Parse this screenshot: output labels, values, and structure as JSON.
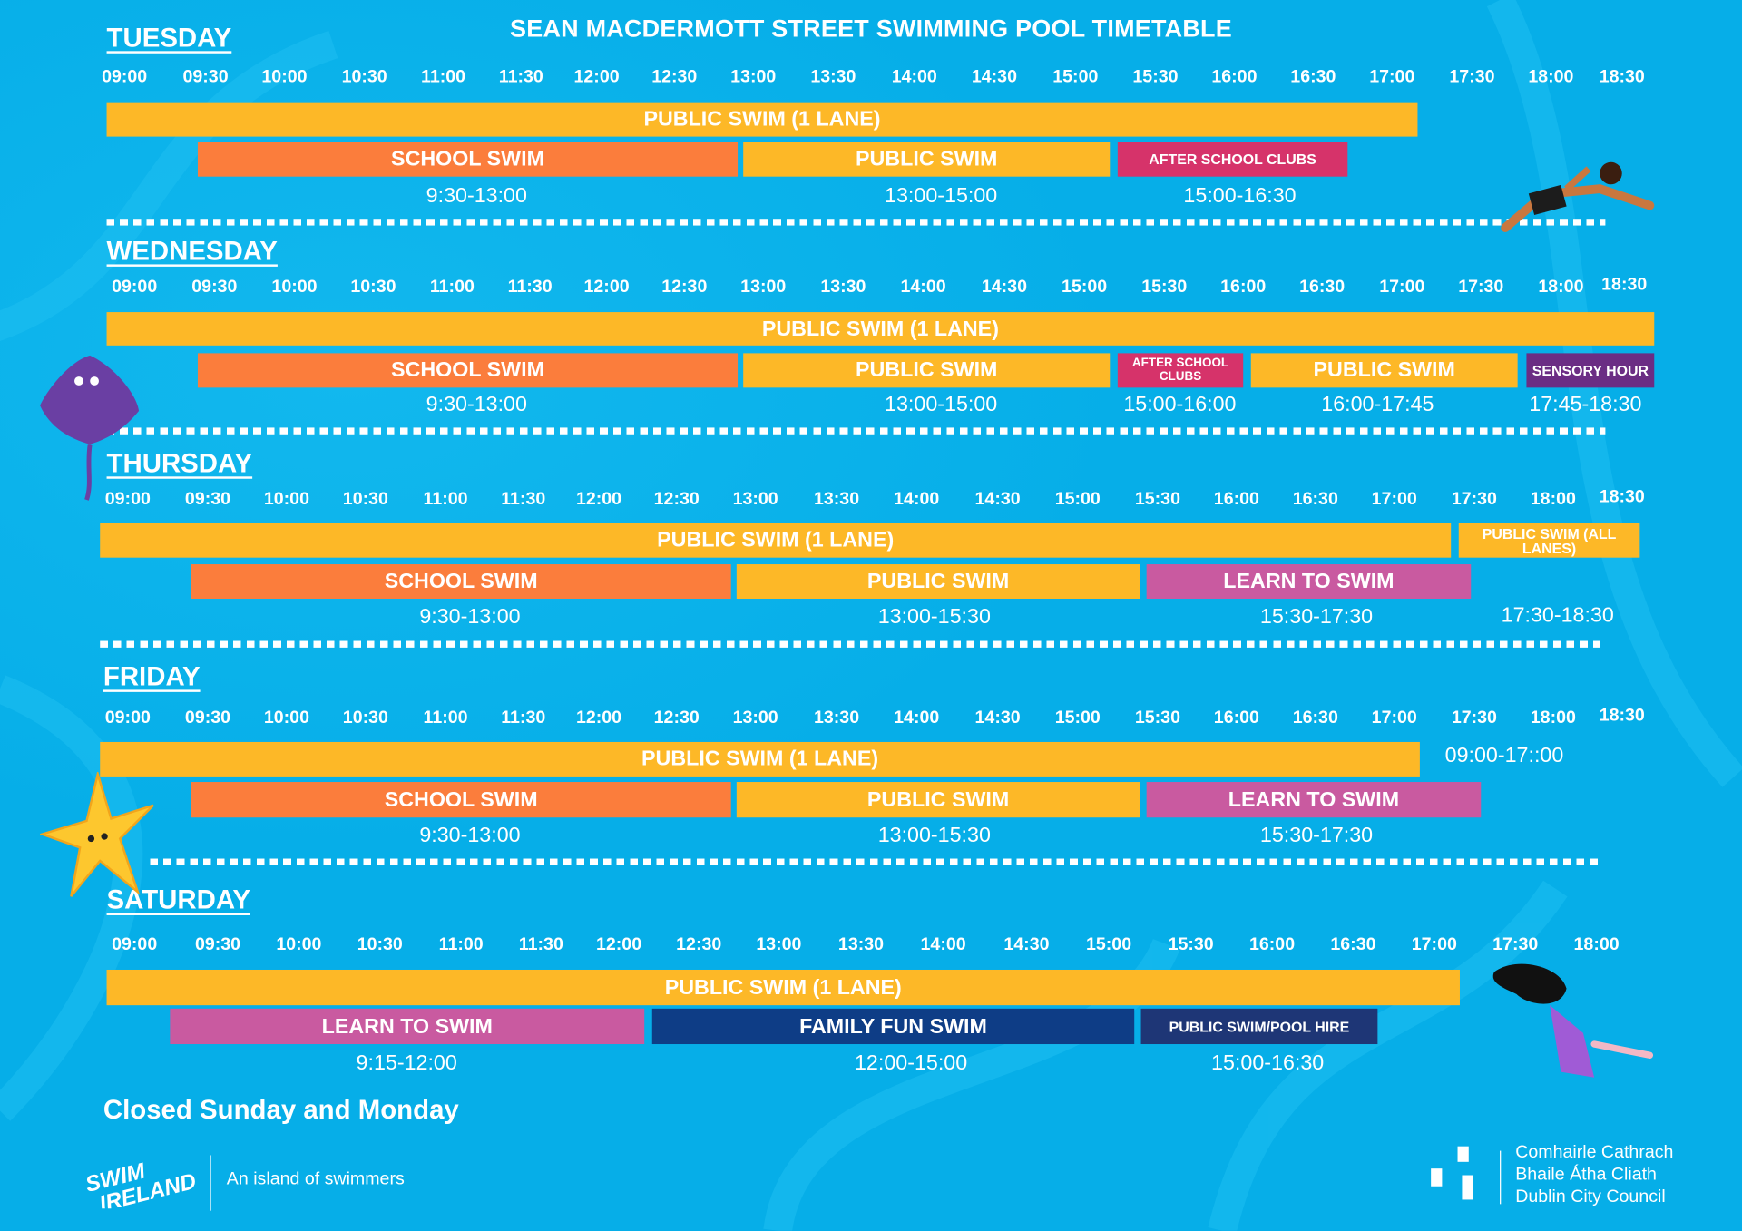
{
  "title": "SEAN MACDERMOTT STREET SWIMMING POOL TIMETABLE",
  "colors": {
    "background": "#06aee8",
    "public_swim": "#fdb827",
    "school_swim": "#fb7d3c",
    "after_school": "#d6336a",
    "learn_to_swim": "#c95aa0",
    "sensory": "#6b2d84",
    "family_fun": "#0e3d86",
    "pool_hire": "#1e3676"
  },
  "days": [
    {
      "name": "TUESDAY",
      "times": [
        "09:00",
        "09:30",
        "10:00",
        "10:30",
        "11:00",
        "11:30",
        "12:00",
        "12:30",
        "13:00",
        "13:30",
        "14:00",
        "14:30",
        "15:00",
        "15:30",
        "16:00",
        "16:30",
        "17:00",
        "17:30",
        "18:00",
        "18:30"
      ],
      "bars": [
        {
          "label": "PUBLIC SWIM (1 LANE)",
          "color": "public_swim"
        },
        {
          "label": "SCHOOL SWIM",
          "color": "school_swim"
        },
        {
          "label": "PUBLIC SWIM",
          "color": "public_swim"
        },
        {
          "label": "AFTER SCHOOL CLUBS",
          "color": "after_school"
        }
      ],
      "durations": [
        "9:30-13:00",
        "13:00-15:00",
        "15:00-16:30"
      ]
    },
    {
      "name": "WEDNESDAY",
      "times": [
        "09:00",
        "09:30",
        "10:00",
        "10:30",
        "11:00",
        "11:30",
        "12:00",
        "12:30",
        "13:00",
        "13:30",
        "14:00",
        "14:30",
        "15:00",
        "15:30",
        "16:00",
        "16:30",
        "17:00",
        "17:30",
        "18:00",
        "18:30"
      ],
      "bars": [
        {
          "label": "PUBLIC SWIM (1 LANE)",
          "color": "public_swim"
        },
        {
          "label": "SCHOOL SWIM",
          "color": "school_swim"
        },
        {
          "label": "PUBLIC SWIM",
          "color": "public_swim"
        },
        {
          "label": "AFTER SCHOOL CLUBS",
          "color": "after_school"
        },
        {
          "label": "PUBLIC SWIM",
          "color": "public_swim"
        },
        {
          "label": "SENSORY HOUR",
          "color": "sensory"
        }
      ],
      "durations": [
        "9:30-13:00",
        "13:00-15:00",
        "15:00-16:00",
        "16:00-17:45",
        "17:45-18:30"
      ]
    },
    {
      "name": "THURSDAY",
      "times": [
        "09:00",
        "09:30",
        "10:00",
        "10:30",
        "11:00",
        "11:30",
        "12:00",
        "12:30",
        "13:00",
        "13:30",
        "14:00",
        "14:30",
        "15:00",
        "15:30",
        "16:00",
        "16:30",
        "17:00",
        "17:30",
        "18:00",
        "18:30"
      ],
      "bars": [
        {
          "label": "PUBLIC SWIM (1 LANE)",
          "color": "public_swim"
        },
        {
          "label": "PUBLIC SWIM (ALL LANES)",
          "color": "public_swim"
        },
        {
          "label": "SCHOOL SWIM",
          "color": "school_swim"
        },
        {
          "label": "PUBLIC SWIM",
          "color": "public_swim"
        },
        {
          "label": "LEARN TO SWIM",
          "color": "learn_to_swim"
        }
      ],
      "durations": [
        "9:30-13:00",
        "13:00-15:30",
        "15:30-17:30",
        "17:30-18:30"
      ]
    },
    {
      "name": "FRIDAY",
      "times": [
        "09:00",
        "09:30",
        "10:00",
        "10:30",
        "11:00",
        "11:30",
        "12:00",
        "12:30",
        "13:00",
        "13:30",
        "14:00",
        "14:30",
        "15:00",
        "15:30",
        "16:00",
        "16:30",
        "17:00",
        "17:30",
        "18:00",
        "18:30"
      ],
      "bars": [
        {
          "label": "PUBLIC SWIM (1 LANE)",
          "color": "public_swim"
        },
        {
          "label": "SCHOOL SWIM",
          "color": "school_swim"
        },
        {
          "label": "PUBLIC SWIM",
          "color": "public_swim"
        },
        {
          "label": "LEARN TO SWIM",
          "color": "learn_to_swim"
        }
      ],
      "durations": [
        "09:00-17::00",
        "9:30-13:00",
        "13:00-15:30",
        "15:30-17:30"
      ]
    },
    {
      "name": "SATURDAY",
      "times": [
        "09:00",
        "09:30",
        "10:00",
        "10:30",
        "11:00",
        "11:30",
        "12:00",
        "12:30",
        "13:00",
        "13:30",
        "14:00",
        "14:30",
        "15:00",
        "15:30",
        "16:00",
        "16:30",
        "17:00",
        "17:30",
        "18:00"
      ],
      "bars": [
        {
          "label": "PUBLIC SWIM (1 LANE)",
          "color": "public_swim"
        },
        {
          "label": "LEARN TO SWIM",
          "color": "learn_to_swim"
        },
        {
          "label": "FAMILY FUN SWIM",
          "color": "family_fun"
        },
        {
          "label": "PUBLIC SWIM/POOL HIRE",
          "color": "pool_hire"
        }
      ],
      "durations": [
        "9:15-12:00",
        "12:00-15:00",
        "15:00-16:30"
      ]
    }
  ],
  "closed_note": "Closed Sunday and Monday",
  "footer": {
    "swim_ireland_logo": "SWIM IRELAND",
    "tagline": "An island of swimmers",
    "council_lines": [
      "Comhairle Cathrach",
      "Bhaile Átha Cliath",
      "Dublin City Council"
    ]
  },
  "decorations": [
    "swimmer-illustration",
    "stingray-illustration",
    "starfish-illustration",
    "diving-girl-illustration"
  ]
}
